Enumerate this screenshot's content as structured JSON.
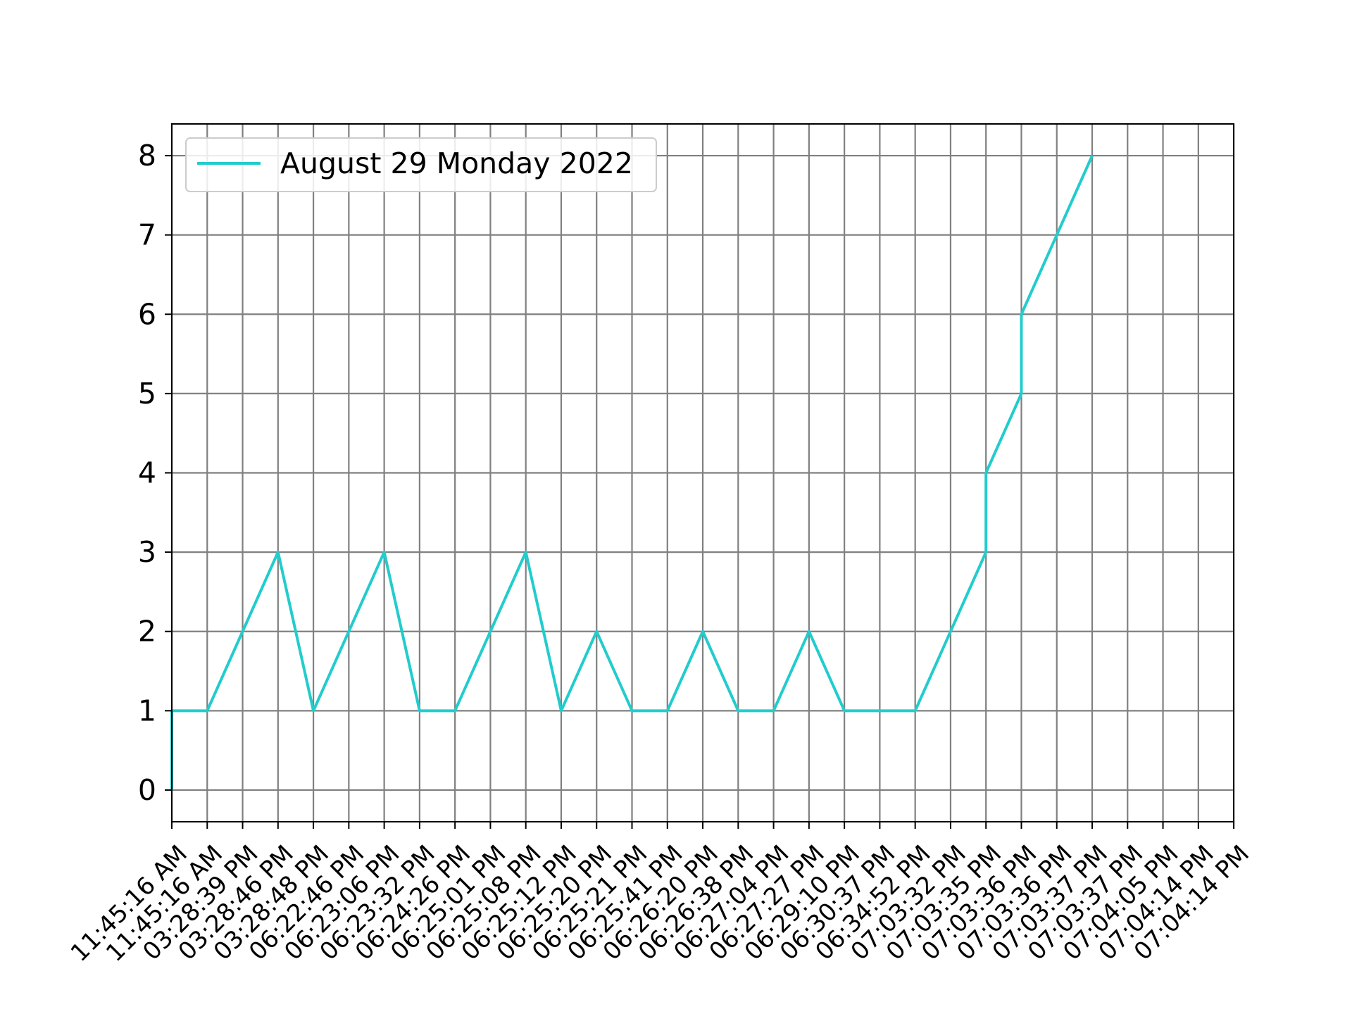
{
  "chart_data": {
    "type": "line",
    "title": "",
    "xlabel": "",
    "ylabel": "",
    "grid": true,
    "legend_placement": "top-left",
    "ylim": [
      -0.4,
      8.4
    ],
    "yticks": [
      0,
      1,
      2,
      3,
      4,
      5,
      6,
      7,
      8
    ],
    "categories": [
      "11:45:16 AM",
      "11:45:16 AM",
      "03:28:39 PM",
      "03:28:46 PM",
      "03:28:48 PM",
      "06:22:46 PM",
      "06:23:06 PM",
      "06:23:32 PM",
      "06:24:26 PM",
      "06:25:01 PM",
      "06:25:08 PM",
      "06:25:12 PM",
      "06:25:20 PM",
      "06:25:21 PM",
      "06:25:41 PM",
      "06:26:20 PM",
      "06:26:38 PM",
      "06:27:04 PM",
      "06:27:27 PM",
      "06:29:10 PM",
      "06:30:37 PM",
      "06:34:52 PM",
      "07:03:32 PM",
      "07:03:35 PM",
      "07:03:36 PM",
      "07:03:36 PM",
      "07:03:37 PM",
      "07:03:37 PM",
      "07:04:05 PM",
      "07:04:14 PM",
      "07:04:14 PM"
    ],
    "series": [
      {
        "name": "August 29 Monday 2022",
        "color": "#22cccc",
        "points": [
          [
            0,
            0
          ],
          [
            0,
            1
          ],
          [
            1,
            1
          ],
          [
            2,
            2
          ],
          [
            3,
            3
          ],
          [
            4,
            1
          ],
          [
            5,
            2
          ],
          [
            6,
            3
          ],
          [
            7,
            1
          ],
          [
            8,
            1
          ],
          [
            9,
            2
          ],
          [
            10,
            3
          ],
          [
            11,
            1
          ],
          [
            12,
            2
          ],
          [
            13,
            1
          ],
          [
            14,
            1
          ],
          [
            15,
            2
          ],
          [
            16,
            1
          ],
          [
            17,
            1
          ],
          [
            18,
            2
          ],
          [
            19,
            1
          ],
          [
            20,
            1
          ],
          [
            21,
            1
          ],
          [
            22,
            2
          ],
          [
            23,
            3
          ],
          [
            23,
            4
          ],
          [
            24,
            5
          ],
          [
            24,
            6
          ],
          [
            25,
            7
          ],
          [
            26,
            8
          ]
        ]
      }
    ],
    "colors": {
      "grid": "#808080",
      "axes": "#000000",
      "legend_border": "#cccccc"
    }
  }
}
